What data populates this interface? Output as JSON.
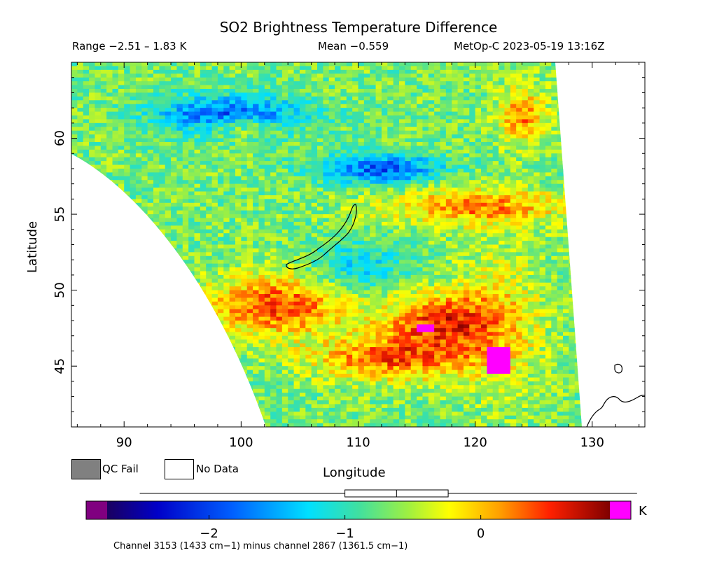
{
  "header": {
    "title": "SO2 Brightness Temperature Difference",
    "range": "Range −2.51 – 1.83 K",
    "mean": "Mean −0.559",
    "satellite": "MetOp-C 2023-05-19 13:16Z"
  },
  "legend": {
    "qc_fail_label": "QC Fail",
    "no_data_label": "No Data",
    "qc_fail_color": "#808080",
    "no_data_color": "#ffffff"
  },
  "colorbar": {
    "unit": "K",
    "min": -2.75,
    "max": 0.95,
    "under_color": "#800080",
    "over_color": "#ff00ff",
    "ticks": [
      -2,
      -1,
      0
    ],
    "tick_labels": [
      "−2",
      "−1",
      "0"
    ],
    "boxplot": {
      "whisker_low": -2.51,
      "q1": -1.0,
      "median": -0.62,
      "q3": -0.24,
      "whisker_high": 1.83
    }
  },
  "footnote": "Channel 3153 (1433 cm−1) minus channel 2867 (1361.5 cm−1)",
  "chart_data": {
    "type": "heatmap",
    "title": "SO2 Brightness Temperature Difference",
    "xlabel": "Longitude",
    "ylabel": "Latitude",
    "xlim": [
      85.5,
      134.5
    ],
    "ylim": [
      41,
      65
    ],
    "xticks": [
      90,
      100,
      110,
      120,
      130
    ],
    "yticks": [
      45,
      50,
      55,
      60
    ],
    "colormap": "rainbow (purple-blue-cyan-green-yellow-orange-red-maroon)",
    "value_unit": "K",
    "value_range": [
      -2.51,
      1.83
    ],
    "mean": -0.559,
    "features": [
      {
        "description": "Swath edge (no data) west of curved boundary",
        "from_lon_lat": [
          85.5,
          59
        ],
        "to_lon_lat": [
          102.2,
          41
        ]
      },
      {
        "description": "Swath edge (no data) east of boundary",
        "from_lon_lat": [
          127,
          65
        ],
        "to_lon_lat": [
          129.5,
          41
        ]
      },
      {
        "description": "Negative band (blue)",
        "lon_range": [
          93,
          105
        ],
        "lat": 61.5
      },
      {
        "description": "Negative band (blue)",
        "lon_range": [
          108,
          118
        ],
        "lat": 58
      },
      {
        "description": "Positive arc (red)",
        "lon_range": [
          97,
          125
        ],
        "lat_range": [
          44,
          50
        ]
      },
      {
        "description": "Positive band (red/orange)",
        "lon_range": [
          112,
          127
        ],
        "lat": 55.5
      },
      {
        "description": "Saturated high values (magenta)",
        "lon_lat": [
          121.8,
          45.5
        ]
      },
      {
        "description": "Saturated high values (magenta)",
        "lon_lat": [
          115.6,
          47.6
        ]
      }
    ],
    "coastlines": [
      "Lake Baikal",
      "Sakhalin / Pacific coast near 130–135E, 42–44N"
    ]
  }
}
